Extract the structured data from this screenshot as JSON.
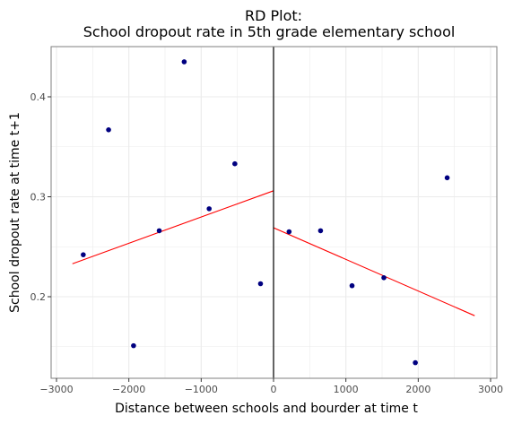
{
  "chart_data": {
    "type": "scatter",
    "title": "RD Plot:",
    "subtitle": "School dropout rate in 5th grade elementary school",
    "xlabel": "Distance between schools and bourder at time t",
    "ylabel": "School dropout rate at time t+1",
    "xlim": [
      -3000,
      3000
    ],
    "ylim": [
      0.12,
      0.45
    ],
    "x_ticks": [
      -3000,
      -2000,
      -1000,
      0,
      1000,
      2000,
      3000
    ],
    "x_tick_labels": [
      "−3000",
      "−2000",
      "−1000",
      "0",
      "1000",
      "2000",
      "3000"
    ],
    "y_ticks": [
      0.2,
      0.3,
      0.4
    ],
    "y_tick_labels": [
      "0.2",
      "0.3",
      "0.4"
    ],
    "grid": true,
    "cutoff": 0,
    "points": [
      {
        "x": -2630,
        "y": 0.242
      },
      {
        "x": -2280,
        "y": 0.367
      },
      {
        "x": -1935,
        "y": 0.151
      },
      {
        "x": -1580,
        "y": 0.266
      },
      {
        "x": -1235,
        "y": 0.435
      },
      {
        "x": -890,
        "y": 0.288
      },
      {
        "x": -535,
        "y": 0.333
      },
      {
        "x": -180,
        "y": 0.213
      },
      {
        "x": 215,
        "y": 0.265
      },
      {
        "x": 650,
        "y": 0.266
      },
      {
        "x": 1085,
        "y": 0.211
      },
      {
        "x": 1525,
        "y": 0.219
      },
      {
        "x": 1960,
        "y": 0.134
      },
      {
        "x": 2400,
        "y": 0.319
      }
    ],
    "fit_lines": [
      {
        "x": [
          -2780,
          0
        ],
        "y": [
          0.233,
          0.306
        ]
      },
      {
        "x": [
          0,
          2780
        ],
        "y": [
          0.269,
          0.181
        ]
      }
    ],
    "colors": {
      "points": "#000080",
      "fit_line": "#ff0000",
      "cutoff_line": "#000000",
      "grid": "#ebebeb",
      "panel_border": "#7f7f7f"
    }
  }
}
